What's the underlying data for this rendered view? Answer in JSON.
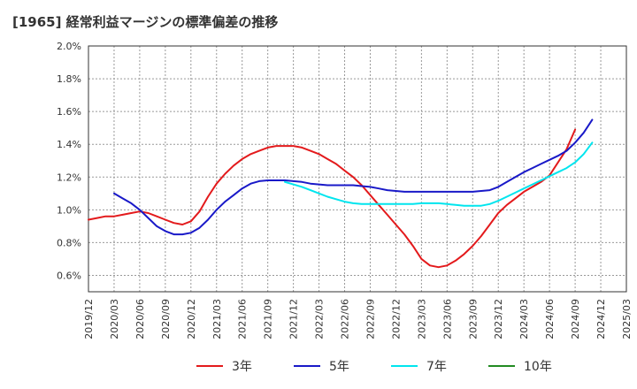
{
  "chart_data": {
    "type": "line",
    "title": "[1965]  経常利益マージンの標準偏差の推移",
    "xlabel": "",
    "ylabel": "",
    "ylim": [
      0.5,
      2.0
    ],
    "yticks": [
      0.6,
      0.8,
      1.0,
      1.2,
      1.4,
      1.6,
      1.8,
      2.0
    ],
    "ytick_labels": [
      "0.6%",
      "0.8%",
      "1.0%",
      "1.2%",
      "1.4%",
      "1.6%",
      "1.8%",
      "2.0%"
    ],
    "xtick_labels": [
      "2019/12",
      "2020/03",
      "2020/06",
      "2020/09",
      "2020/12",
      "2021/03",
      "2021/06",
      "2021/09",
      "2021/12",
      "2022/03",
      "2022/06",
      "2022/09",
      "2022/12",
      "2023/03",
      "2023/06",
      "2023/09",
      "2023/12",
      "2024/03",
      "2024/06",
      "2024/09",
      "2024/12",
      "2025/03"
    ],
    "grid": true,
    "legend_position": "bottom",
    "series": [
      {
        "name": "3年",
        "color": "#e31a1c",
        "start_index": 0,
        "values": [
          0.94,
          0.95,
          0.96,
          0.96,
          0.97,
          0.98,
          0.99,
          0.98,
          0.96,
          0.94,
          0.92,
          0.91,
          0.93,
          0.99,
          1.08,
          1.16,
          1.22,
          1.27,
          1.31,
          1.34,
          1.36,
          1.38,
          1.39,
          1.39,
          1.39,
          1.38,
          1.36,
          1.34,
          1.31,
          1.28,
          1.24,
          1.2,
          1.15,
          1.09,
          1.03,
          0.97,
          0.91,
          0.85,
          0.78,
          0.7,
          0.66,
          0.65,
          0.66,
          0.69,
          0.73,
          0.78,
          0.84,
          0.91,
          0.98,
          1.03,
          1.07,
          1.11,
          1.14,
          1.17,
          1.21,
          1.29,
          1.37,
          1.49
        ]
      },
      {
        "name": "5年",
        "color": "#1919c8",
        "start_index": 3,
        "values": [
          1.1,
          1.07,
          1.04,
          1.0,
          0.95,
          0.9,
          0.87,
          0.85,
          0.85,
          0.86,
          0.89,
          0.94,
          1.0,
          1.05,
          1.09,
          1.13,
          1.16,
          1.175,
          1.18,
          1.18,
          1.18,
          1.175,
          1.17,
          1.16,
          1.155,
          1.15,
          1.15,
          1.15,
          1.15,
          1.145,
          1.14,
          1.13,
          1.12,
          1.115,
          1.11,
          1.11,
          1.11,
          1.11,
          1.11,
          1.11,
          1.11,
          1.11,
          1.11,
          1.115,
          1.12,
          1.14,
          1.17,
          1.2,
          1.23,
          1.255,
          1.28,
          1.305,
          1.33,
          1.36,
          1.41,
          1.47,
          1.55
        ]
      },
      {
        "name": "7年",
        "color": "#00e5ee",
        "start_index": 23,
        "values": [
          1.17,
          1.155,
          1.14,
          1.12,
          1.1,
          1.08,
          1.065,
          1.05,
          1.04,
          1.035,
          1.035,
          1.035,
          1.035,
          1.035,
          1.035,
          1.035,
          1.04,
          1.04,
          1.04,
          1.035,
          1.03,
          1.025,
          1.025,
          1.025,
          1.035,
          1.055,
          1.08,
          1.105,
          1.13,
          1.155,
          1.18,
          1.205,
          1.23,
          1.255,
          1.29,
          1.34,
          1.41
        ]
      },
      {
        "name": "10年",
        "color": "#228b22",
        "start_index": 0,
        "values": []
      }
    ]
  }
}
